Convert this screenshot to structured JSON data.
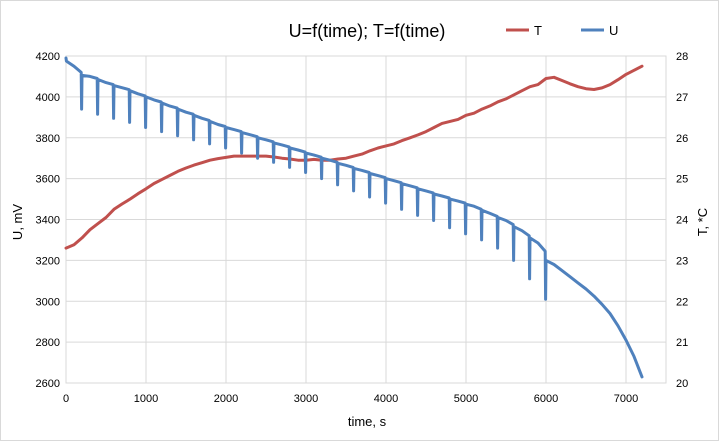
{
  "chart_data": {
    "type": "line",
    "title": "U=f(time);  T=f(time)",
    "xlabel": "time, s",
    "ylabel_left": "U, mV",
    "ylabel_right": "T, *C",
    "xlim": [
      0,
      7500
    ],
    "ylim_left": [
      2600,
      4200
    ],
    "ylim_right": [
      20,
      28
    ],
    "x_ticks": [
      0,
      1000,
      2000,
      3000,
      4000,
      5000,
      6000,
      7000
    ],
    "y_ticks_left": [
      2600,
      2800,
      3000,
      3200,
      3400,
      3600,
      3800,
      4000,
      4200
    ],
    "y_ticks_right": [
      20,
      21,
      22,
      23,
      24,
      25,
      26,
      27,
      28
    ],
    "grid": true,
    "legend_placement": "top-right",
    "colors": {
      "T": "#c0504d",
      "U": "#4f81bd",
      "grid": "#d9d9d9"
    },
    "series": [
      {
        "name": "T",
        "axis": "right",
        "points": [
          [
            0,
            23.3
          ],
          [
            100,
            23.38
          ],
          [
            200,
            23.55
          ],
          [
            300,
            23.75
          ],
          [
            400,
            23.9
          ],
          [
            500,
            24.05
          ],
          [
            600,
            24.25
          ],
          [
            700,
            24.38
          ],
          [
            800,
            24.5
          ],
          [
            900,
            24.63
          ],
          [
            1000,
            24.75
          ],
          [
            1100,
            24.88
          ],
          [
            1200,
            24.98
          ],
          [
            1300,
            25.08
          ],
          [
            1400,
            25.18
          ],
          [
            1500,
            25.26
          ],
          [
            1600,
            25.33
          ],
          [
            1700,
            25.39
          ],
          [
            1800,
            25.45
          ],
          [
            1900,
            25.49
          ],
          [
            2000,
            25.52
          ],
          [
            2100,
            25.55
          ],
          [
            2200,
            25.55
          ],
          [
            2300,
            25.55
          ],
          [
            2400,
            25.55
          ],
          [
            2500,
            25.55
          ],
          [
            2600,
            25.53
          ],
          [
            2700,
            25.5
          ],
          [
            2800,
            25.48
          ],
          [
            2900,
            25.45
          ],
          [
            3000,
            25.45
          ],
          [
            3100,
            25.47
          ],
          [
            3200,
            25.45
          ],
          [
            3300,
            25.45
          ],
          [
            3400,
            25.48
          ],
          [
            3500,
            25.5
          ],
          [
            3600,
            25.55
          ],
          [
            3700,
            25.6
          ],
          [
            3800,
            25.68
          ],
          [
            3900,
            25.75
          ],
          [
            4000,
            25.8
          ],
          [
            4100,
            25.85
          ],
          [
            4200,
            25.93
          ],
          [
            4300,
            26.0
          ],
          [
            4400,
            26.07
          ],
          [
            4500,
            26.15
          ],
          [
            4600,
            26.25
          ],
          [
            4700,
            26.35
          ],
          [
            4800,
            26.4
          ],
          [
            4900,
            26.45
          ],
          [
            5000,
            26.55
          ],
          [
            5100,
            26.6
          ],
          [
            5200,
            26.7
          ],
          [
            5300,
            26.78
          ],
          [
            5400,
            26.88
          ],
          [
            5500,
            26.95
          ],
          [
            5600,
            27.05
          ],
          [
            5700,
            27.15
          ],
          [
            5800,
            27.25
          ],
          [
            5900,
            27.3
          ],
          [
            6000,
            27.45
          ],
          [
            6100,
            27.48
          ],
          [
            6200,
            27.4
          ],
          [
            6300,
            27.32
          ],
          [
            6400,
            27.25
          ],
          [
            6500,
            27.2
          ],
          [
            6600,
            27.18
          ],
          [
            6700,
            27.22
          ],
          [
            6800,
            27.3
          ],
          [
            6900,
            27.42
          ],
          [
            7000,
            27.55
          ],
          [
            7100,
            27.65
          ],
          [
            7200,
            27.75
          ]
        ]
      },
      {
        "name": "U",
        "axis": "left",
        "points": [
          [
            0,
            4190
          ],
          [
            5,
            4175
          ],
          [
            100,
            4150
          ],
          [
            190,
            4120
          ],
          [
            195,
            3940
          ],
          [
            200,
            4105
          ],
          [
            300,
            4100
          ],
          [
            390,
            4090
          ],
          [
            395,
            3915
          ],
          [
            400,
            4085
          ],
          [
            500,
            4070
          ],
          [
            590,
            4060
          ],
          [
            595,
            3895
          ],
          [
            600,
            4055
          ],
          [
            700,
            4045
          ],
          [
            790,
            4035
          ],
          [
            795,
            3875
          ],
          [
            800,
            4030
          ],
          [
            900,
            4015
          ],
          [
            990,
            4005
          ],
          [
            995,
            3850
          ],
          [
            1000,
            4000
          ],
          [
            1100,
            3985
          ],
          [
            1190,
            3975
          ],
          [
            1195,
            3830
          ],
          [
            1200,
            3970
          ],
          [
            1300,
            3955
          ],
          [
            1390,
            3945
          ],
          [
            1395,
            3810
          ],
          [
            1400,
            3940
          ],
          [
            1500,
            3925
          ],
          [
            1590,
            3915
          ],
          [
            1595,
            3790
          ],
          [
            1600,
            3910
          ],
          [
            1700,
            3895
          ],
          [
            1790,
            3885
          ],
          [
            1795,
            3770
          ],
          [
            1800,
            3880
          ],
          [
            1900,
            3865
          ],
          [
            1990,
            3855
          ],
          [
            1995,
            3750
          ],
          [
            2000,
            3850
          ],
          [
            2100,
            3840
          ],
          [
            2190,
            3830
          ],
          [
            2195,
            3725
          ],
          [
            2200,
            3825
          ],
          [
            2300,
            3815
          ],
          [
            2390,
            3805
          ],
          [
            2395,
            3700
          ],
          [
            2400,
            3800
          ],
          [
            2500,
            3790
          ],
          [
            2590,
            3780
          ],
          [
            2595,
            3680
          ],
          [
            2600,
            3775
          ],
          [
            2700,
            3765
          ],
          [
            2790,
            3755
          ],
          [
            2795,
            3655
          ],
          [
            2800,
            3750
          ],
          [
            2900,
            3740
          ],
          [
            2990,
            3730
          ],
          [
            2995,
            3630
          ],
          [
            3000,
            3725
          ],
          [
            3100,
            3715
          ],
          [
            3190,
            3705
          ],
          [
            3195,
            3600
          ],
          [
            3200,
            3700
          ],
          [
            3300,
            3690
          ],
          [
            3390,
            3680
          ],
          [
            3395,
            3570
          ],
          [
            3400,
            3675
          ],
          [
            3500,
            3665
          ],
          [
            3590,
            3655
          ],
          [
            3595,
            3540
          ],
          [
            3600,
            3650
          ],
          [
            3700,
            3640
          ],
          [
            3790,
            3630
          ],
          [
            3795,
            3510
          ],
          [
            3800,
            3625
          ],
          [
            3900,
            3615
          ],
          [
            3990,
            3605
          ],
          [
            3995,
            3480
          ],
          [
            4000,
            3600
          ],
          [
            4100,
            3590
          ],
          [
            4190,
            3580
          ],
          [
            4195,
            3450
          ],
          [
            4200,
            3575
          ],
          [
            4300,
            3565
          ],
          [
            4390,
            3555
          ],
          [
            4395,
            3420
          ],
          [
            4400,
            3550
          ],
          [
            4500,
            3540
          ],
          [
            4590,
            3530
          ],
          [
            4595,
            3395
          ],
          [
            4600,
            3525
          ],
          [
            4700,
            3515
          ],
          [
            4790,
            3505
          ],
          [
            4795,
            3360
          ],
          [
            4800,
            3500
          ],
          [
            4900,
            3490
          ],
          [
            4990,
            3480
          ],
          [
            4995,
            3330
          ],
          [
            5000,
            3475
          ],
          [
            5100,
            3465
          ],
          [
            5190,
            3450
          ],
          [
            5195,
            3300
          ],
          [
            5200,
            3445
          ],
          [
            5300,
            3430
          ],
          [
            5390,
            3415
          ],
          [
            5395,
            3260
          ],
          [
            5400,
            3410
          ],
          [
            5500,
            3395
          ],
          [
            5590,
            3375
          ],
          [
            5595,
            3200
          ],
          [
            5600,
            3365
          ],
          [
            5700,
            3345
          ],
          [
            5790,
            3320
          ],
          [
            5795,
            3110
          ],
          [
            5800,
            3310
          ],
          [
            5900,
            3285
          ],
          [
            5990,
            3245
          ],
          [
            5995,
            3010
          ],
          [
            6000,
            3200
          ],
          [
            6100,
            3180
          ],
          [
            6200,
            3150
          ],
          [
            6300,
            3120
          ],
          [
            6400,
            3090
          ],
          [
            6500,
            3060
          ],
          [
            6600,
            3025
          ],
          [
            6700,
            2985
          ],
          [
            6800,
            2940
          ],
          [
            6900,
            2880
          ],
          [
            7000,
            2810
          ],
          [
            7100,
            2730
          ],
          [
            7200,
            2630
          ]
        ]
      }
    ]
  }
}
